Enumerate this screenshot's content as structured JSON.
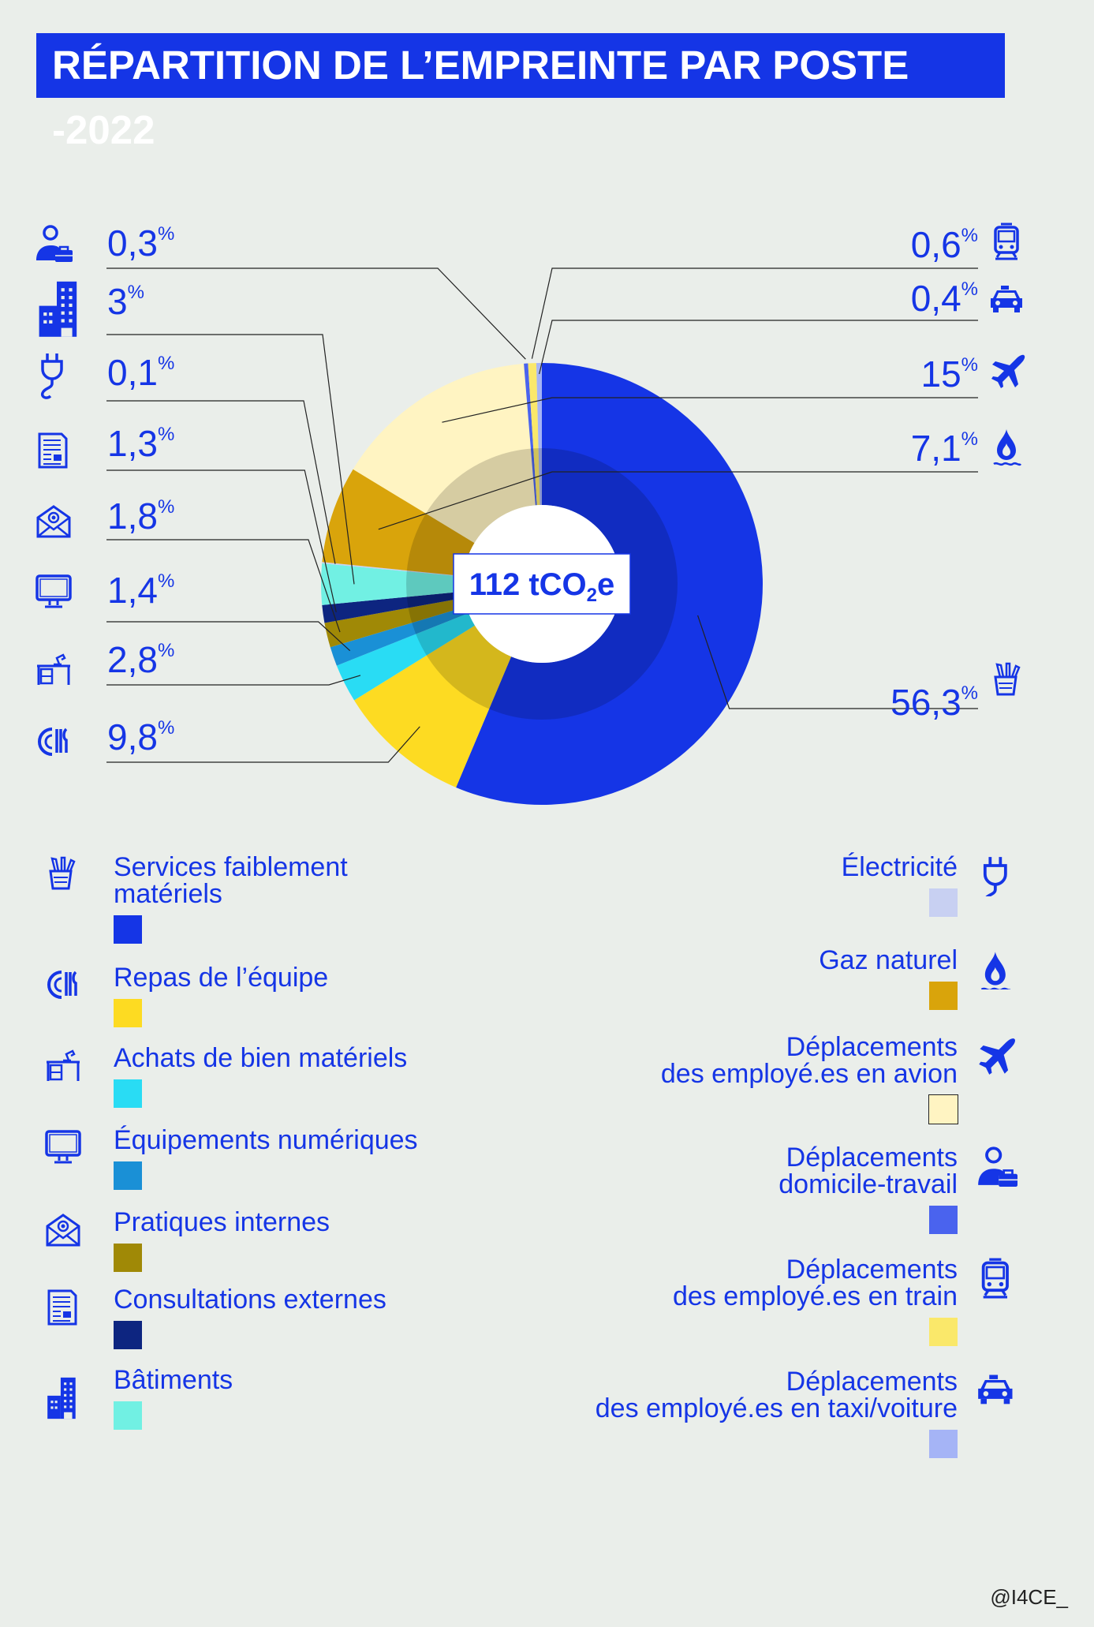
{
  "title": "RÉPARTITION DE L’EMPREINTE PAR POSTE -2022",
  "center_label": {
    "value": "112 tCO",
    "sub": "2",
    "suffix": "e"
  },
  "credit": "@I4CE_",
  "chart_data": {
    "type": "pie",
    "title": "RÉPARTITION DE L’EMPREINTE PAR POSTE -2022",
    "total": "112 tCO2e",
    "slices": [
      {
        "name": "Services faiblement matériels",
        "value": 56.3,
        "label": "56,3",
        "color": "#1535e6",
        "icon": "pencil-cup-icon"
      },
      {
        "name": "Repas de l’équipe",
        "value": 9.8,
        "label": "9,8",
        "color": "#fddb22",
        "icon": "meal-icon"
      },
      {
        "name": "Achats de bien matériels",
        "value": 2.8,
        "label": "2,8",
        "color": "#29dcf4",
        "icon": "desk-icon"
      },
      {
        "name": "Équipements numériques",
        "value": 1.4,
        "label": "1,4",
        "color": "#1a90d6",
        "icon": "monitor-icon"
      },
      {
        "name": "Pratiques internes",
        "value": 1.8,
        "label": "1,8",
        "color": "#a08906",
        "icon": "email-icon"
      },
      {
        "name": "Consultations externes",
        "value": 1.3,
        "label": "1,3",
        "color": "#0d2580",
        "icon": "document-icon"
      },
      {
        "name": "Bâtiments",
        "value": 3,
        "label": "3",
        "color": "#71f0e3",
        "icon": "building-icon"
      },
      {
        "name": "Électricité",
        "value": 0.1,
        "label": "0,1",
        "color": "#c8d0f2",
        "icon": "plug-icon"
      },
      {
        "name": "Gaz naturel",
        "value": 7.1,
        "label": "7,1",
        "color": "#d9a40b",
        "icon": "gas-flame-icon"
      },
      {
        "name": "Déplacements des employé.es en avion",
        "value": 15,
        "label": "15",
        "color": "#fff4c2",
        "icon": "plane-icon"
      },
      {
        "name": "Déplacements domicile-travail",
        "value": 0.3,
        "label": "0,3",
        "color": "#4a63ee",
        "icon": "commuter-icon"
      },
      {
        "name": "Déplacements des employé.es en train",
        "value": 0.6,
        "label": "0,6",
        "color": "#fae86a",
        "icon": "train-icon"
      },
      {
        "name": "Déplacements des employé.es en taxi/voiture",
        "value": 0.4,
        "label": "0,4",
        "color": "#a5b4f6",
        "icon": "car-icon"
      }
    ],
    "unit_symbol": "%"
  },
  "legend_left": [
    {
      "lines": [
        "Services faiblement",
        "matériels"
      ],
      "color": "#1535e6",
      "icon": "pencil-cup-icon"
    },
    {
      "lines": [
        "Repas de l’équipe"
      ],
      "color": "#fddb22",
      "icon": "meal-icon"
    },
    {
      "lines": [
        "Achats de bien matériels"
      ],
      "color": "#29dcf4",
      "icon": "desk-icon"
    },
    {
      "lines": [
        "Équipements numériques"
      ],
      "color": "#1a90d6",
      "icon": "monitor-icon"
    },
    {
      "lines": [
        "Pratiques internes"
      ],
      "color": "#a08906",
      "icon": "email-icon"
    },
    {
      "lines": [
        "Consultations externes"
      ],
      "color": "#0d2580",
      "icon": "document-icon"
    },
    {
      "lines": [
        "Bâtiments"
      ],
      "color": "#71f0e3",
      "icon": "building-icon"
    }
  ],
  "legend_right": [
    {
      "lines": [
        "Électricité"
      ],
      "color": "#c8d0f2",
      "icon": "plug-icon"
    },
    {
      "lines": [
        "Gaz naturel"
      ],
      "color": "#d9a40b",
      "icon": "gas-flame-icon"
    },
    {
      "lines": [
        "Déplacements",
        "des employé.es en avion"
      ],
      "color": "#fff4c2",
      "icon": "plane-icon"
    },
    {
      "lines": [
        "Déplacements",
        "domicile-travail"
      ],
      "color": "#4a63ee",
      "icon": "commuter-icon"
    },
    {
      "lines": [
        "Déplacements",
        "des employé.es en train"
      ],
      "color": "#fae86a",
      "icon": "train-icon"
    },
    {
      "lines": [
        "Déplacements",
        "des employé.es en taxi/voiture"
      ],
      "color": "#a5b4f6",
      "icon": "car-icon"
    }
  ]
}
